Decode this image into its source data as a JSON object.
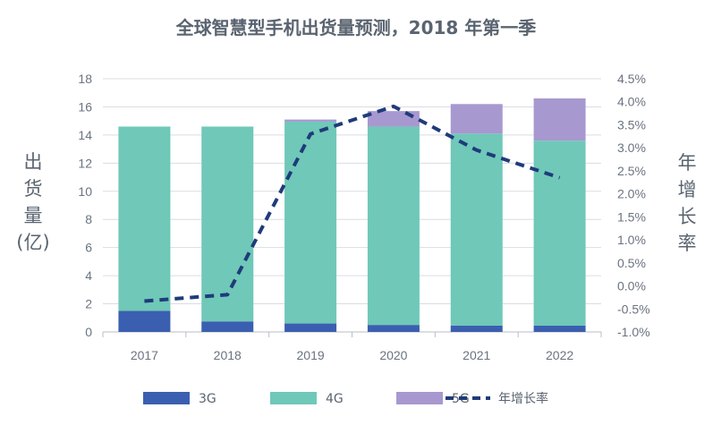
{
  "colors": {
    "3G": "#3b5fb0",
    "4G": "#6fc8b8",
    "5G": "#a898d0",
    "growth_line": "#1f3b7a",
    "grid": "#d9dde2",
    "axis": "#b8bec6"
  },
  "chart_data": {
    "type": "bar",
    "title": "全球智慧型手机出货量预测，2018 年第一季",
    "categories": [
      "2017",
      "2018",
      "2019",
      "2020",
      "2021",
      "2022"
    ],
    "series": [
      {
        "name": "3G",
        "values": [
          1.5,
          0.75,
          0.6,
          0.5,
          0.45,
          0.45
        ]
      },
      {
        "name": "4G",
        "values": [
          13.1,
          13.85,
          14.35,
          14.1,
          13.65,
          13.15
        ]
      },
      {
        "name": "5G",
        "values": [
          0,
          0,
          0.15,
          1.1,
          2.1,
          3.0
        ]
      }
    ],
    "line_series": {
      "name": "年增长率",
      "values": [
        -0.33,
        -0.19,
        3.3,
        3.9,
        2.95,
        2.35
      ]
    },
    "ylabel_chars": [
      "出",
      "货",
      "量",
      "(亿)"
    ],
    "y2label_chars": [
      "年",
      "增",
      "长",
      "率"
    ],
    "ylim": [
      0,
      18
    ],
    "y_ticks": [
      "0",
      "2",
      "4",
      "6",
      "8",
      "10",
      "12",
      "14",
      "16",
      "18"
    ],
    "y2lim": [
      -1.0,
      4.5
    ],
    "y2_ticks": [
      "-1.0%",
      "-0.5%",
      "0.0%",
      "0.5%",
      "1.0%",
      "1.5%",
      "2.0%",
      "2.5%",
      "3.0%",
      "3.5%",
      "4.0%",
      "4.5%"
    ],
    "stacked": true,
    "grid": true,
    "legend_position": "bottom"
  }
}
